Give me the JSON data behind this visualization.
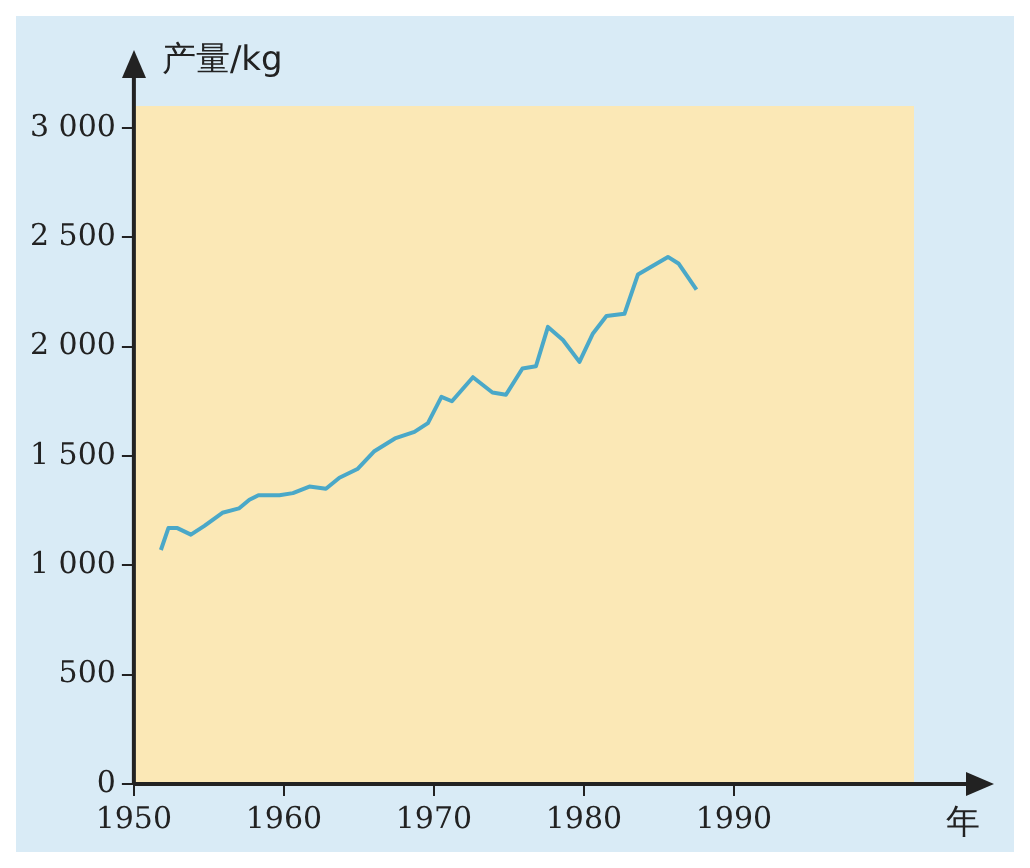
{
  "chart_data": {
    "type": "line",
    "xlabel": "年",
    "ylabel": "产量/kg",
    "series": [
      {
        "color": "#4aa8c8",
        "x": [
          1951.8,
          1952.3,
          1952.9,
          1953.8,
          1954.7,
          1955.9,
          1957,
          1957.7,
          1958.3,
          1959.7,
          1960.6,
          1961.7,
          1962.8,
          1963.7,
          1964.9,
          1966,
          1967.4,
          1968.7,
          1969.6,
          1970.5,
          1971.2,
          1972.6,
          1973.9,
          1974.8,
          1975.9,
          1976.8,
          1977.6,
          1978.6,
          1979.7,
          1980.6,
          1981.5,
          1982.7,
          1983.6,
          1985.6,
          1986.3,
          1987.5
        ],
        "values": [
          1070,
          1170,
          1170,
          1140,
          1180,
          1240,
          1260,
          1300,
          1320,
          1320,
          1330,
          1360,
          1350,
          1400,
          1440,
          1520,
          1580,
          1610,
          1650,
          1770,
          1750,
          1860,
          1790,
          1780,
          1900,
          1910,
          2090,
          2030,
          1930,
          2060,
          2140,
          2150,
          2330,
          2410,
          2380,
          2260
        ]
      }
    ],
    "xlim": [
      1950,
      2002
    ],
    "ylim": [
      0,
      3100
    ],
    "xticks": [
      1950,
      1960,
      1970,
      1980,
      1990
    ],
    "yticks": [
      0,
      500,
      {
        "value": 1000,
        "label": "1 000"
      },
      {
        "value": 1500,
        "label": "1 500"
      },
      {
        "value": 2000,
        "label": "2 000"
      },
      {
        "value": 2500,
        "label": "2 500"
      },
      {
        "value": 3000,
        "label": "3 000"
      }
    ],
    "grid": false,
    "legend": false,
    "marker": "none",
    "line_style": "solid"
  }
}
